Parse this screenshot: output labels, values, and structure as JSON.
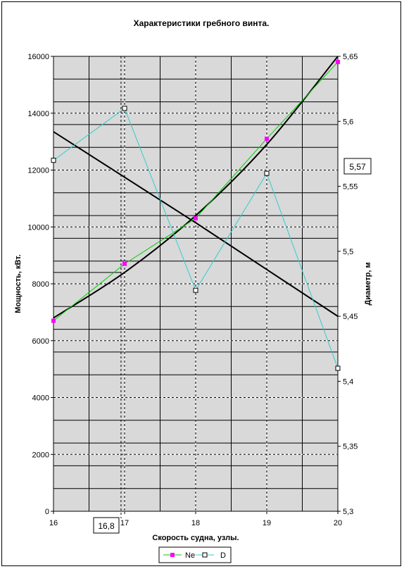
{
  "chart_data": {
    "type": "line",
    "title": "Характеристики гребного винта.",
    "xlabel": "Скорость судна, узлы.",
    "ylabel_left": "Мощность, кВт.",
    "ylabel_right": "Диаметр, м",
    "x": [
      16,
      17,
      18,
      19,
      20
    ],
    "xlim": [
      16,
      20
    ],
    "ylim_left": [
      0,
      16000
    ],
    "ylim_right": [
      5.3,
      5.65
    ],
    "x_ticks": [
      "16",
      "17",
      "18",
      "19",
      "20"
    ],
    "y_ticks_left": [
      "0",
      "2000",
      "4000",
      "6000",
      "8000",
      "10000",
      "12000",
      "14000",
      "16000"
    ],
    "y_ticks_right": [
      "5,3",
      "5,35",
      "5,4",
      "5,45",
      "5,5",
      "5,55",
      "5,6",
      "5,65"
    ],
    "grid": true,
    "legend_position": "bottom",
    "series": [
      {
        "name": "Ne",
        "axis": "left",
        "values": [
          6700,
          8700,
          10300,
          13100,
          15800
        ],
        "color": "#ff00ff",
        "line_color": "#00cc00",
        "marker": "square-filled"
      },
      {
        "name": "D",
        "axis": "right",
        "values": [
          5.57,
          5.61,
          5.47,
          5.56,
          5.41
        ],
        "color": "#33cccc",
        "marker": "square-open"
      }
    ],
    "trend_lines": [
      {
        "kind": "power_curve",
        "axis": "left",
        "values": [
          6800,
          8400,
          10400,
          12900,
          16000
        ],
        "color": "#000000"
      },
      {
        "kind": "diameter_line",
        "axis": "right",
        "values": [
          5.592,
          5.557,
          5.522,
          5.486,
          5.45
        ],
        "color": "#000000"
      }
    ],
    "annotations": {
      "speed_marker": {
        "x": 16.95,
        "label": "16,8"
      },
      "diameter_marker": {
        "y": 5.57,
        "label": "5,57"
      },
      "power_marker": {
        "y": 8400
      }
    }
  }
}
